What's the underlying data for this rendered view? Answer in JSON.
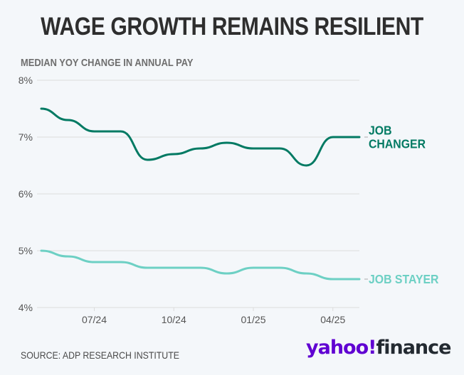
{
  "title": "WAGE GROWTH REMAINS RESILIENT",
  "subtitle": "MEDIAN YOY CHANGE IN ANNUAL PAY",
  "source": "SOURCE: ADP RESEARCH INSTITUTE",
  "logo": {
    "brand": "yahoo!",
    "product": "finance",
    "brand_color": "#6001d2",
    "product_color": "#232a31"
  },
  "chart_data": {
    "type": "line",
    "title": "WAGE GROWTH REMAINS RESILIENT",
    "subtitle": "MEDIAN YOY CHANGE IN ANNUAL PAY",
    "xlabel": "",
    "ylabel": "",
    "x": [
      "05/24",
      "06/24",
      "07/24",
      "08/24",
      "09/24",
      "10/24",
      "11/24",
      "12/24",
      "01/25",
      "02/25",
      "03/25",
      "04/25",
      "05/25"
    ],
    "xticks": [
      "07/24",
      "10/24",
      "01/25",
      "04/25"
    ],
    "yticks": [
      "4%",
      "5%",
      "6%",
      "7%",
      "8%"
    ],
    "ylim": [
      4,
      8
    ],
    "grid": true,
    "legend": "inline-right",
    "series": [
      {
        "name": "JOB CHANGER",
        "label_lines": [
          "JOB",
          "CHANGER"
        ],
        "color": "#027a63",
        "values": [
          7.5,
          7.3,
          7.1,
          7.1,
          6.6,
          6.7,
          6.8,
          6.9,
          6.8,
          6.8,
          6.5,
          7.0,
          7.0
        ]
      },
      {
        "name": "JOB STAYER",
        "label_lines": [
          "JOB STAYER"
        ],
        "color": "#6dd0c4",
        "values": [
          5.0,
          4.9,
          4.8,
          4.8,
          4.7,
          4.7,
          4.7,
          4.6,
          4.7,
          4.7,
          4.6,
          4.5,
          4.5
        ]
      }
    ]
  }
}
